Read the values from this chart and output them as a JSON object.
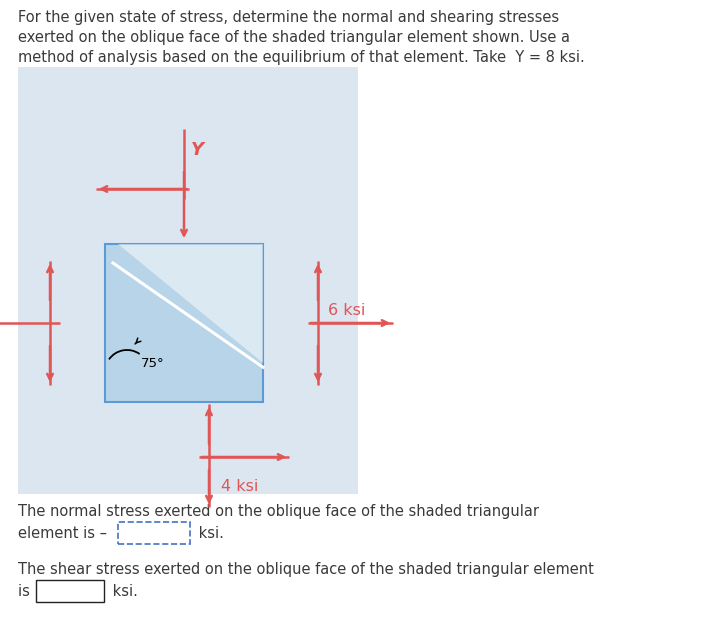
{
  "title_line1": "For the given state of stress, determine the normal and shearing stresses",
  "title_line2": "exerted on the oblique face of the shaded triangular element shown. Use a",
  "title_line3": "method of analysis based on the equilibrium of that element. Take  Y = 8 ksi.",
  "bg_box_color": "#dce6f1",
  "sq_fill_color": "#b8d4e8",
  "sq_fill_color2": "#cce0ee",
  "sq_border_color": "#5b9bd5",
  "arrow_color": "#e05555",
  "label_6ksi": "6 ksi",
  "label_4ksi": "4 ksi",
  "label_Y": "Y",
  "label_75": "75°",
  "normal_text1": "The normal stress exerted on the oblique face of the shaded triangular",
  "normal_text2": "element is – ",
  "normal_unit": " ksi.",
  "shear_text1": "The shear stress exerted on the oblique face of the shaded triangular element",
  "shear_text2": "is ",
  "shear_unit": " ksi.",
  "input_border_dashed": "#4472c4",
  "input_border_solid": "#222222",
  "text_color": "#3a3a3a",
  "arrow_lw": 1.8,
  "font_size_title": 10.5,
  "font_size_stress": 11.5,
  "font_size_body": 10.5,
  "font_size_Y": 13
}
